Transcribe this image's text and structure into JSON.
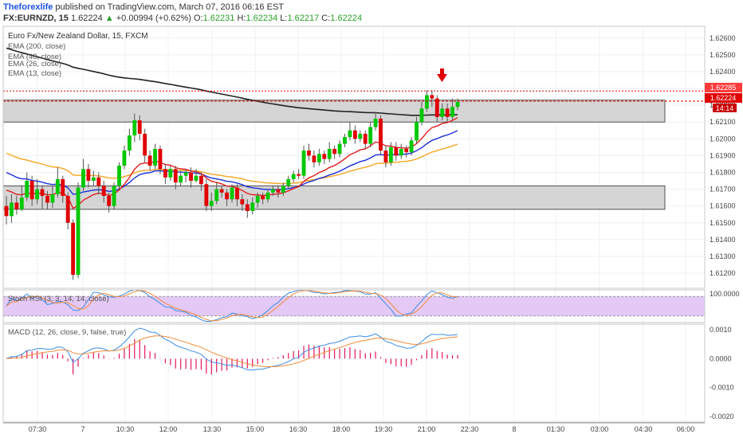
{
  "header": {
    "author": "Theforexlife",
    "published_text": " published on TradingView.com, March 07, 2016 06:16 EST",
    "symbol": "FX:EURNZD, 15",
    "last": "1.62224",
    "change_arrow": "▲",
    "change": "+0.00994 (+0.62%)",
    "open_label": "O:",
    "open": "1.62231",
    "high_label": "H:",
    "high": "1.62234",
    "low_label": "L:",
    "low": "1.62217",
    "close_label": "C:",
    "close": "1.62224"
  },
  "legend": {
    "title": "Euro Fx/New Zealand Dollar, 15, FXCM",
    "ema200": "EMA (200, close)",
    "ema48": "EMA (48, close)",
    "ema26": "EMA (26, close)",
    "ema13": "EMA (13, close)",
    "stoch": "Stoch RSI (3, 3, 14, 14, close)",
    "macd": "MACD (12, 26, close, 9, false, true)"
  },
  "price_tags": {
    "resistance": "1.62285",
    "last": "1.62224",
    "countdown": "14:14"
  },
  "colors": {
    "bull": "#00c800",
    "bear": "#e00000",
    "ema200": "#222222",
    "ema48": "#f5a623",
    "ema26": "#1a2fd6",
    "ema13": "#e01e1e",
    "zone_fill": "#d3d3d3",
    "stoch_band": "#e4c8f5",
    "stoch_k": "#3a8ee6",
    "stoch_d": "#f08c3a",
    "macd_hist": "#e3175a",
    "resistance_line": "#e00000",
    "arrow": "#e00000",
    "last_tag": "#e00000",
    "resist_tag": "#ff3b3b",
    "countdown_tag": "#c80000"
  },
  "chart_data": {
    "type": "candlestick",
    "title": "Euro Fx/New Zealand Dollar, 15, FXCM",
    "x_tick_labels": [
      "07:30",
      "7",
      "10:30",
      "12:00",
      "13:30",
      "15:00",
      "16:30",
      "18:00",
      "19:30",
      "21:00",
      "22:30",
      "8",
      "01:30",
      "03:00",
      "04:30",
      "06:00"
    ],
    "y_tick_labels": [
      "1.62600",
      "1.62500",
      "1.62400",
      "1.62300",
      "1.62200",
      "1.62100",
      "1.62000",
      "1.61900",
      "1.61800",
      "1.61700",
      "1.61600",
      "1.61500",
      "1.61400",
      "1.61300",
      "1.61200"
    ],
    "ylim": [
      1.6111,
      1.6267
    ],
    "grid": true,
    "resistance_level": 1.62285,
    "last_price": 1.62224,
    "zones": [
      {
        "from": 1.621,
        "to": 1.6223
      },
      {
        "from": 1.6158,
        "to": 1.6172
      }
    ],
    "candles": [
      [
        1.616,
        1.6154,
        1.6166,
        1.6149
      ],
      [
        1.6154,
        1.6162,
        1.6167,
        1.615
      ],
      [
        1.6162,
        1.6158,
        1.6166,
        1.6155
      ],
      [
        1.6158,
        1.6165,
        1.6172,
        1.6157
      ],
      [
        1.6165,
        1.6175,
        1.618,
        1.6163
      ],
      [
        1.6175,
        1.6164,
        1.6178,
        1.616
      ],
      [
        1.6164,
        1.617,
        1.6176,
        1.6161
      ],
      [
        1.617,
        1.6166,
        1.6172,
        1.6158
      ],
      [
        1.6166,
        1.6162,
        1.6169,
        1.6158
      ],
      [
        1.6162,
        1.6167,
        1.6172,
        1.6159
      ],
      [
        1.6167,
        1.6176,
        1.6183,
        1.6165
      ],
      [
        1.6176,
        1.6166,
        1.6178,
        1.6162
      ],
      [
        1.6166,
        1.615,
        1.6168,
        1.6146
      ],
      [
        1.615,
        1.6119,
        1.6152,
        1.6116
      ],
      [
        1.6119,
        1.6171,
        1.6174,
        1.6117
      ],
      [
        1.6171,
        1.6182,
        1.6188,
        1.6169
      ],
      [
        1.6182,
        1.6175,
        1.6185,
        1.6171
      ],
      [
        1.6175,
        1.6177,
        1.6181,
        1.6172
      ],
      [
        1.6177,
        1.6172,
        1.618,
        1.6167
      ],
      [
        1.6172,
        1.6166,
        1.6175,
        1.6162
      ],
      [
        1.6166,
        1.616,
        1.6168,
        1.6156
      ],
      [
        1.616,
        1.6172,
        1.6174,
        1.6158
      ],
      [
        1.6172,
        1.6184,
        1.6186,
        1.617
      ],
      [
        1.6184,
        1.6193,
        1.6196,
        1.6182
      ],
      [
        1.6193,
        1.6202,
        1.6206,
        1.619
      ],
      [
        1.6202,
        1.6211,
        1.6215,
        1.6198
      ],
      [
        1.6211,
        1.6203,
        1.6214,
        1.6199
      ],
      [
        1.6203,
        1.619,
        1.6206,
        1.6186
      ],
      [
        1.619,
        1.6184,
        1.6193,
        1.6181
      ],
      [
        1.6184,
        1.6194,
        1.6197,
        1.6182
      ],
      [
        1.6194,
        1.6182,
        1.6196,
        1.6179
      ],
      [
        1.6182,
        1.6177,
        1.6185,
        1.6173
      ],
      [
        1.6177,
        1.6182,
        1.6184,
        1.6175
      ],
      [
        1.6182,
        1.6174,
        1.6184,
        1.617
      ],
      [
        1.6174,
        1.6178,
        1.6181,
        1.6172
      ],
      [
        1.6178,
        1.618,
        1.6182,
        1.6174
      ],
      [
        1.618,
        1.6175,
        1.6183,
        1.6171
      ],
      [
        1.6175,
        1.6178,
        1.6182,
        1.6174
      ],
      [
        1.6178,
        1.6173,
        1.618,
        1.6169
      ],
      [
        1.6173,
        1.616,
        1.6176,
        1.6157
      ],
      [
        1.616,
        1.6163,
        1.6168,
        1.6157
      ],
      [
        1.6163,
        1.617,
        1.6174,
        1.6161
      ],
      [
        1.617,
        1.6168,
        1.6172,
        1.6165
      ],
      [
        1.6168,
        1.6164,
        1.617,
        1.616
      ],
      [
        1.6164,
        1.6171,
        1.6173,
        1.6162
      ],
      [
        1.6171,
        1.6164,
        1.6173,
        1.616
      ],
      [
        1.6164,
        1.6161,
        1.6167,
        1.6157
      ],
      [
        1.6161,
        1.6157,
        1.6164,
        1.6153
      ],
      [
        1.6157,
        1.6162,
        1.6165,
        1.6155
      ],
      [
        1.6162,
        1.6166,
        1.6168,
        1.6159
      ],
      [
        1.6166,
        1.6164,
        1.6168,
        1.6161
      ],
      [
        1.6164,
        1.6168,
        1.617,
        1.6162
      ],
      [
        1.6168,
        1.617,
        1.6172,
        1.6166
      ],
      [
        1.617,
        1.6168,
        1.6172,
        1.6165
      ],
      [
        1.6168,
        1.6172,
        1.6174,
        1.6166
      ],
      [
        1.6172,
        1.6176,
        1.6178,
        1.617
      ],
      [
        1.6176,
        1.6179,
        1.6181,
        1.6174
      ],
      [
        1.6179,
        1.6178,
        1.6182,
        1.6176
      ],
      [
        1.6178,
        1.6193,
        1.6196,
        1.6176
      ],
      [
        1.6193,
        1.619,
        1.6197,
        1.6187
      ],
      [
        1.619,
        1.6186,
        1.6193,
        1.6183
      ],
      [
        1.6186,
        1.6191,
        1.6194,
        1.6184
      ],
      [
        1.6191,
        1.6188,
        1.6193,
        1.6185
      ],
      [
        1.6188,
        1.6194,
        1.6198,
        1.6186
      ],
      [
        1.6194,
        1.6191,
        1.6196,
        1.6188
      ],
      [
        1.6191,
        1.6197,
        1.6199,
        1.6189
      ],
      [
        1.6197,
        1.6201,
        1.6203,
        1.6195
      ],
      [
        1.6201,
        1.6205,
        1.621,
        1.6199
      ],
      [
        1.6205,
        1.62,
        1.6208,
        1.6197
      ],
      [
        1.62,
        1.6203,
        1.6205,
        1.6198
      ],
      [
        1.6203,
        1.6197,
        1.6205,
        1.6194
      ],
      [
        1.6197,
        1.6207,
        1.621,
        1.6195
      ],
      [
        1.6207,
        1.6212,
        1.6216,
        1.6205
      ],
      [
        1.6212,
        1.6193,
        1.6214,
        1.619
      ],
      [
        1.6193,
        1.6186,
        1.6196,
        1.6183
      ],
      [
        1.6186,
        1.6195,
        1.6198,
        1.6184
      ],
      [
        1.6195,
        1.619,
        1.6198,
        1.6187
      ],
      [
        1.619,
        1.6194,
        1.6197,
        1.6188
      ],
      [
        1.6194,
        1.6192,
        1.6196,
        1.6189
      ],
      [
        1.6192,
        1.6199,
        1.6201,
        1.619
      ],
      [
        1.6199,
        1.621,
        1.6213,
        1.6197
      ],
      [
        1.621,
        1.6218,
        1.6222,
        1.6208
      ],
      [
        1.6218,
        1.6226,
        1.6229,
        1.6216
      ],
      [
        1.6226,
        1.6224,
        1.6229,
        1.6219
      ],
      [
        1.6224,
        1.6213,
        1.6226,
        1.621
      ],
      [
        1.6213,
        1.6218,
        1.6221,
        1.6211
      ],
      [
        1.6218,
        1.6213,
        1.6221,
        1.621
      ],
      [
        1.6213,
        1.6219,
        1.6224,
        1.6211
      ],
      [
        1.6219,
        1.6222,
        1.6224,
        1.6217
      ]
    ],
    "stoch_rsi": {
      "ylim": [
        0,
        100
      ],
      "y_tick_labels": [
        "100.0000"
      ],
      "band": [
        20,
        80
      ]
    },
    "macd": {
      "y_tick_labels": [
        "0.0010",
        "0.0000",
        "-0.0010",
        "-0.0020"
      ],
      "ylim": [
        -0.0022,
        0.0012
      ]
    }
  }
}
